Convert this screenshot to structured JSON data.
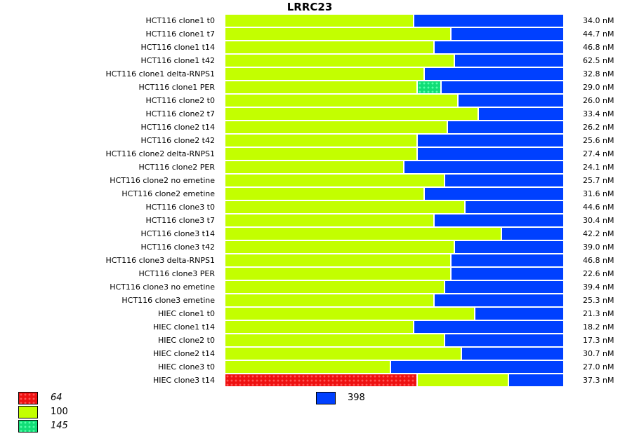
{
  "chart_data": {
    "type": "bar",
    "orientation": "horizontal-stacked-proportional",
    "title": "LRRC23",
    "xlabel": "",
    "ylabel": "",
    "colors": {
      "64": "#ee1111",
      "100": "#c3ff00",
      "145": "#11dd77",
      "398": "#0040ff"
    },
    "legend": [
      {
        "label": "64",
        "color": "#ee1111",
        "pattern": "dotted",
        "italic": true
      },
      {
        "label": "100",
        "color": "#c3ff00",
        "pattern": "solid",
        "italic": false
      },
      {
        "label": "145",
        "color": "#11dd77",
        "pattern": "dotted",
        "italic": true
      },
      {
        "label": "398",
        "color": "#0040ff",
        "pattern": "solid",
        "italic": false
      }
    ],
    "categories": [
      "HCT116 clone1 t0",
      "HCT116 clone1 t7",
      "HCT116 clone1 t14",
      "HCT116 clone1 t42",
      "HCT116 clone1 delta-RNPS1",
      "HCT116 clone1 PER",
      "HCT116 clone2 t0",
      "HCT116 clone2 t7",
      "HCT116 clone2 t14",
      "HCT116 clone2 t42",
      "HCT116 clone2 delta-RNPS1",
      "HCT116 clone2 PER",
      "HCT116 clone2 no emetine",
      "HCT116 clone2 emetine",
      "HCT116 clone3 t0",
      "HCT116 clone3 t7",
      "HCT116 clone3 t14",
      "HCT116 clone3 t42",
      "HCT116 clone3 delta-RNPS1",
      "HCT116 clone3 PER",
      "HCT116 clone3 no emetine",
      "HCT116 clone3 emetine",
      "HIEC clone1 t0",
      "HIEC clone1 t14",
      "HIEC clone2 t0",
      "HIEC clone2 t14",
      "HIEC clone3 t0",
      "HIEC clone3 t14"
    ],
    "totals": [
      "34.0 nM",
      "44.7 nM",
      "46.8 nM",
      "62.5 nM",
      "32.8 nM",
      "29.0 nM",
      "26.0 nM",
      "33.4 nM",
      "26.2 nM",
      "25.6 nM",
      "27.4 nM",
      "24.1 nM",
      "25.7 nM",
      "31.6 nM",
      "44.6 nM",
      "30.4 nM",
      "42.2 nM",
      "39.0 nM",
      "46.8 nM",
      "22.6 nM",
      "39.4 nM",
      "25.3 nM",
      "21.3 nM",
      "18.2 nM",
      "17.3 nM",
      "30.7 nM",
      "27.0 nM",
      "37.3 nM"
    ],
    "series": [
      {
        "name": "64",
        "values": [
          0,
          0,
          0,
          0,
          0,
          0,
          0,
          0,
          0,
          0,
          0,
          0,
          0,
          0,
          0,
          0,
          0,
          0,
          0,
          0,
          0,
          0,
          0,
          0,
          0,
          0,
          0,
          0.57
        ]
      },
      {
        "name": "100",
        "values": [
          0.56,
          0.67,
          0.62,
          0.68,
          0.59,
          0.57,
          0.69,
          0.75,
          0.66,
          0.57,
          0.57,
          0.53,
          0.65,
          0.59,
          0.71,
          0.62,
          0.82,
          0.68,
          0.67,
          0.67,
          0.65,
          0.62,
          0.74,
          0.56,
          0.65,
          0.7,
          0.49,
          0.27
        ]
      },
      {
        "name": "145",
        "values": [
          0,
          0,
          0,
          0,
          0,
          0.07,
          0,
          0,
          0,
          0,
          0,
          0,
          0,
          0,
          0,
          0,
          0,
          0,
          0,
          0,
          0,
          0,
          0,
          0,
          0,
          0,
          0,
          0
        ]
      },
      {
        "name": "398",
        "values": [
          0.44,
          0.33,
          0.38,
          0.32,
          0.41,
          0.36,
          0.31,
          0.25,
          0.34,
          0.43,
          0.43,
          0.47,
          0.35,
          0.41,
          0.29,
          0.38,
          0.18,
          0.32,
          0.33,
          0.33,
          0.35,
          0.38,
          0.26,
          0.44,
          0.35,
          0.3,
          0.51,
          0.16
        ]
      }
    ],
    "xlim": [
      0,
      1
    ],
    "grid": false,
    "legend_placement": "bottom"
  }
}
